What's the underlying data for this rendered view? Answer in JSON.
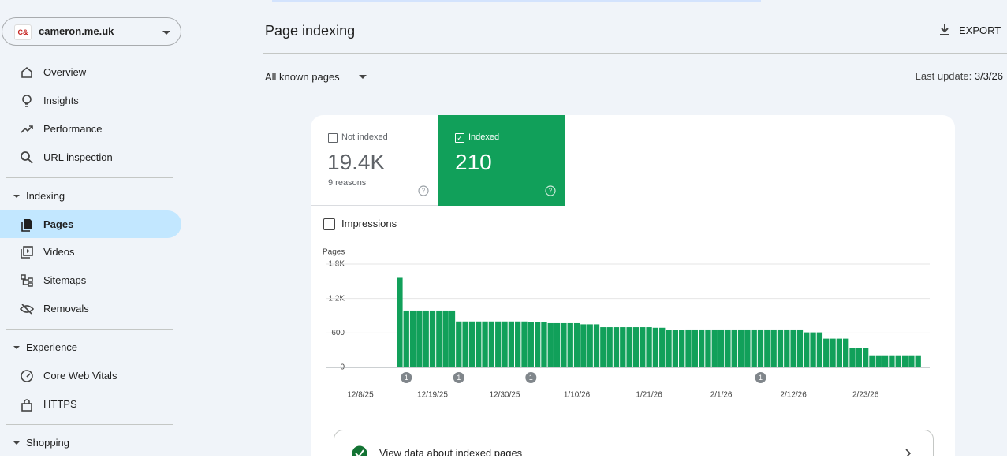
{
  "property": "cameron.me.uk",
  "property_logo": "C&",
  "nav": {
    "top": [
      "Overview",
      "Insights",
      "Performance",
      "URL inspection"
    ],
    "sections": [
      {
        "title": "Indexing",
        "items": [
          "Pages",
          "Videos",
          "Sitemaps",
          "Removals"
        ]
      },
      {
        "title": "Experience",
        "items": [
          "Core Web Vitals",
          "HTTPS"
        ]
      },
      {
        "title": "Shopping"
      }
    ]
  },
  "header": {
    "title": "Page indexing",
    "export": "EXPORT"
  },
  "filter": "All known pages",
  "last_update": {
    "label": "Last update:",
    "value": "3/3/26"
  },
  "tabs": [
    {
      "label": "Not indexed",
      "value": "19.4K",
      "note": "9 reasons"
    },
    {
      "label": "Indexed",
      "value": "210"
    }
  ],
  "impressions": "Impressions",
  "chart_data": {
    "type": "bar",
    "y_label": "Pages",
    "color": "#11a05a",
    "categories": [
      "12/8/25",
      null,
      null,
      null,
      null,
      null,
      null,
      null,
      null,
      null,
      null,
      "12/19/25",
      null,
      null,
      null,
      null,
      null,
      null,
      null,
      null,
      null,
      null,
      "12/30/25",
      null,
      null,
      null,
      null,
      null,
      null,
      null,
      null,
      null,
      null,
      "1/10/26",
      null,
      null,
      null,
      null,
      null,
      null,
      null,
      null,
      null,
      null,
      "1/21/26",
      null,
      null,
      null,
      null,
      null,
      null,
      null,
      null,
      null,
      null,
      "2/1/26",
      null,
      null,
      null,
      null,
      null,
      null,
      null,
      null,
      null,
      null,
      "2/12/26",
      null,
      null,
      null,
      null,
      null,
      null,
      null,
      null,
      null,
      null,
      "2/23/26",
      null,
      null,
      null,
      null,
      null,
      null,
      null,
      null,
      null,
      null
    ],
    "values": [
      null,
      null,
      null,
      null,
      null,
      null,
      1560,
      990,
      990,
      990,
      990,
      990,
      990,
      990,
      990,
      800,
      800,
      800,
      800,
      800,
      800,
      800,
      800,
      800,
      800,
      800,
      790,
      790,
      790,
      770,
      770,
      770,
      770,
      770,
      750,
      750,
      750,
      700,
      700,
      700,
      700,
      700,
      700,
      700,
      700,
      690,
      690,
      650,
      650,
      650,
      660,
      660,
      660,
      660,
      660,
      660,
      660,
      660,
      660,
      660,
      660,
      660,
      660,
      660,
      660,
      660,
      660,
      660,
      610,
      610,
      610,
      500,
      500,
      500,
      500,
      330,
      330,
      330,
      210,
      210,
      210,
      210,
      210,
      210,
      210,
      210,
      null,
      null
    ],
    "ylim": [
      0,
      1800
    ],
    "yticks": [
      0,
      600,
      {
        "value": 1200,
        "label": "1.2K"
      },
      {
        "value": 1800,
        "label": "1.8K"
      }
    ],
    "grid": true,
    "annotations": [
      "1",
      "1",
      "1",
      "1"
    ]
  },
  "link": "View data about indexed pages"
}
